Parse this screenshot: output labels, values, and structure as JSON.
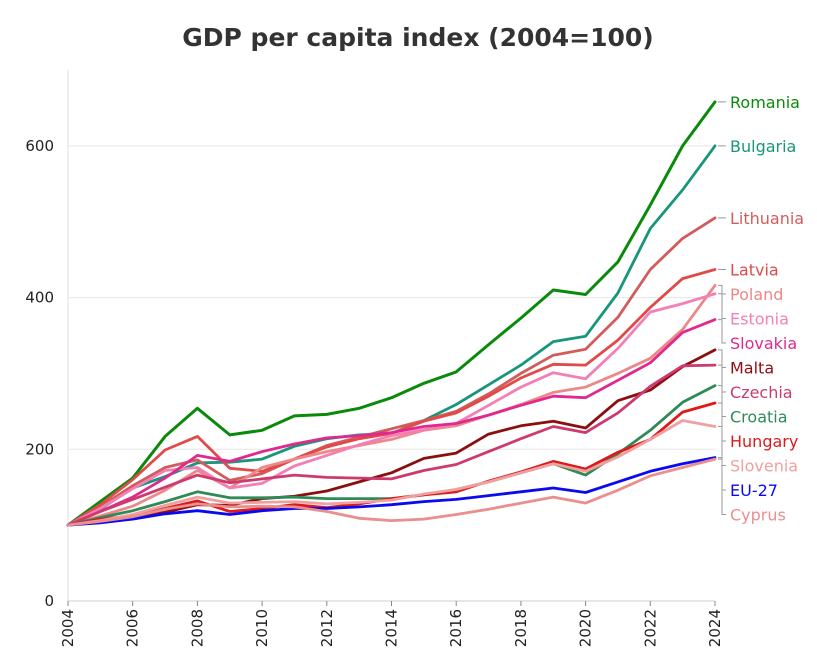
{
  "chart_data": {
    "type": "line",
    "title": "GDP per capita index (2004=100)",
    "xlabel": "",
    "ylabel": "",
    "xlim": [
      2004,
      2024
    ],
    "ylim": [
      0,
      700
    ],
    "x_ticks": [
      "2004",
      "2006",
      "2008",
      "2010",
      "2012",
      "2014",
      "2016",
      "2018",
      "2020",
      "2022",
      "2024"
    ],
    "y_ticks": [
      "0",
      "200",
      "400",
      "600"
    ],
    "grid": "horizontal",
    "legend": "end-of-line labels on the right",
    "x": [
      2004,
      2005,
      2006,
      2007,
      2008,
      2009,
      2010,
      2011,
      2012,
      2013,
      2014,
      2015,
      2016,
      2017,
      2018,
      2019,
      2020,
      2021,
      2022,
      2023,
      2024
    ],
    "series": [
      {
        "name": "Romania",
        "color": "#0a8a0a",
        "label_color": "#0a8a0a",
        "values": [
          100,
          131,
          162,
          217,
          254,
          219,
          225,
          244,
          246,
          254,
          268,
          287,
          302,
          338,
          373,
          410,
          404,
          447,
          522,
          600,
          658
        ]
      },
      {
        "name": "Bulgaria",
        "color": "#17967a",
        "label_color": "#17967a",
        "values": [
          100,
          121,
          149,
          164,
          182,
          183,
          187,
          204,
          214,
          219,
          221,
          238,
          259,
          285,
          311,
          342,
          349,
          406,
          491,
          542,
          600
        ]
      },
      {
        "name": "Lithuania",
        "color": "#d25c5c",
        "label_color": "#d25c5c",
        "values": [
          100,
          124,
          152,
          176,
          186,
          159,
          168,
          187,
          205,
          216,
          227,
          238,
          250,
          273,
          300,
          324,
          332,
          374,
          437,
          478,
          505
        ]
      },
      {
        "name": "Latvia",
        "color": "#e04a4a",
        "label_color": "#e04a4a",
        "values": [
          100,
          127,
          160,
          199,
          217,
          175,
          171,
          187,
          203,
          214,
          221,
          237,
          248,
          270,
          294,
          312,
          311,
          344,
          387,
          425,
          437
        ]
      },
      {
        "name": "Poland",
        "color": "#ee8888",
        "label_color": "#ee8888",
        "values": [
          100,
          112,
          125,
          146,
          172,
          149,
          176,
          187,
          197,
          205,
          213,
          225,
          231,
          245,
          259,
          275,
          282,
          300,
          320,
          358,
          416
        ]
      },
      {
        "name": "Estonia",
        "color": "#f47fb6",
        "label_color": "#f47fb6",
        "values": [
          100,
          122,
          148,
          172,
          176,
          149,
          155,
          178,
          192,
          206,
          218,
          226,
          234,
          258,
          282,
          301,
          293,
          333,
          381,
          392,
          405
        ]
      },
      {
        "name": "Slovakia",
        "color": "#e0298f",
        "label_color": "#e0298f",
        "values": [
          100,
          118,
          137,
          162,
          192,
          184,
          197,
          207,
          215,
          218,
          222,
          230,
          234,
          245,
          258,
          270,
          268,
          291,
          314,
          354,
          371
        ]
      },
      {
        "name": "Malta",
        "color": "#8b0f0f",
        "label_color": "#8b0f0f",
        "values": [
          100,
          105,
          110,
          117,
          127,
          126,
          135,
          138,
          145,
          157,
          169,
          188,
          195,
          220,
          231,
          237,
          228,
          264,
          278,
          309,
          331
        ]
      },
      {
        "name": "Czechia",
        "color": "#cc3a6e",
        "label_color": "#cc3a6e",
        "values": [
          100,
          118,
          134,
          150,
          166,
          156,
          161,
          166,
          163,
          162,
          161,
          172,
          180,
          197,
          214,
          230,
          222,
          248,
          283,
          310,
          311
        ]
      },
      {
        "name": "Croatia",
        "color": "#2e8b57",
        "label_color": "#2e8b57",
        "values": [
          100,
          110,
          119,
          131,
          144,
          136,
          136,
          137,
          135,
          135,
          135,
          140,
          147,
          157,
          169,
          181,
          166,
          194,
          225,
          262,
          284
        ]
      },
      {
        "name": "Hungary",
        "color": "#dd1a1a",
        "label_color": "#dd1a1a",
        "values": [
          100,
          108,
          112,
          122,
          132,
          118,
          122,
          127,
          123,
          128,
          135,
          140,
          144,
          158,
          170,
          184,
          174,
          196,
          213,
          249,
          261
        ]
      },
      {
        "name": "Slovenia",
        "color": "#f0a0a0",
        "label_color": "#f0a0a0",
        "values": [
          100,
          106,
          114,
          126,
          137,
          129,
          130,
          131,
          128,
          130,
          133,
          141,
          147,
          157,
          169,
          181,
          171,
          190,
          213,
          238,
          230
        ]
      },
      {
        "name": "EU-27",
        "color": "#0a0aee",
        "label_color": "#0a0aee",
        "values": [
          100,
          103,
          108,
          115,
          119,
          114,
          119,
          122,
          122,
          124,
          127,
          131,
          134,
          139,
          144,
          149,
          143,
          157,
          171,
          181,
          189
        ]
      },
      {
        "name": "Cyprus",
        "color": "#ea8e8e",
        "label_color": "#ea8e8e",
        "values": [
          100,
          105,
          111,
          121,
          128,
          124,
          125,
          124,
          118,
          109,
          106,
          108,
          114,
          121,
          129,
          137,
          129,
          146,
          165,
          176,
          187
        ]
      }
    ]
  }
}
